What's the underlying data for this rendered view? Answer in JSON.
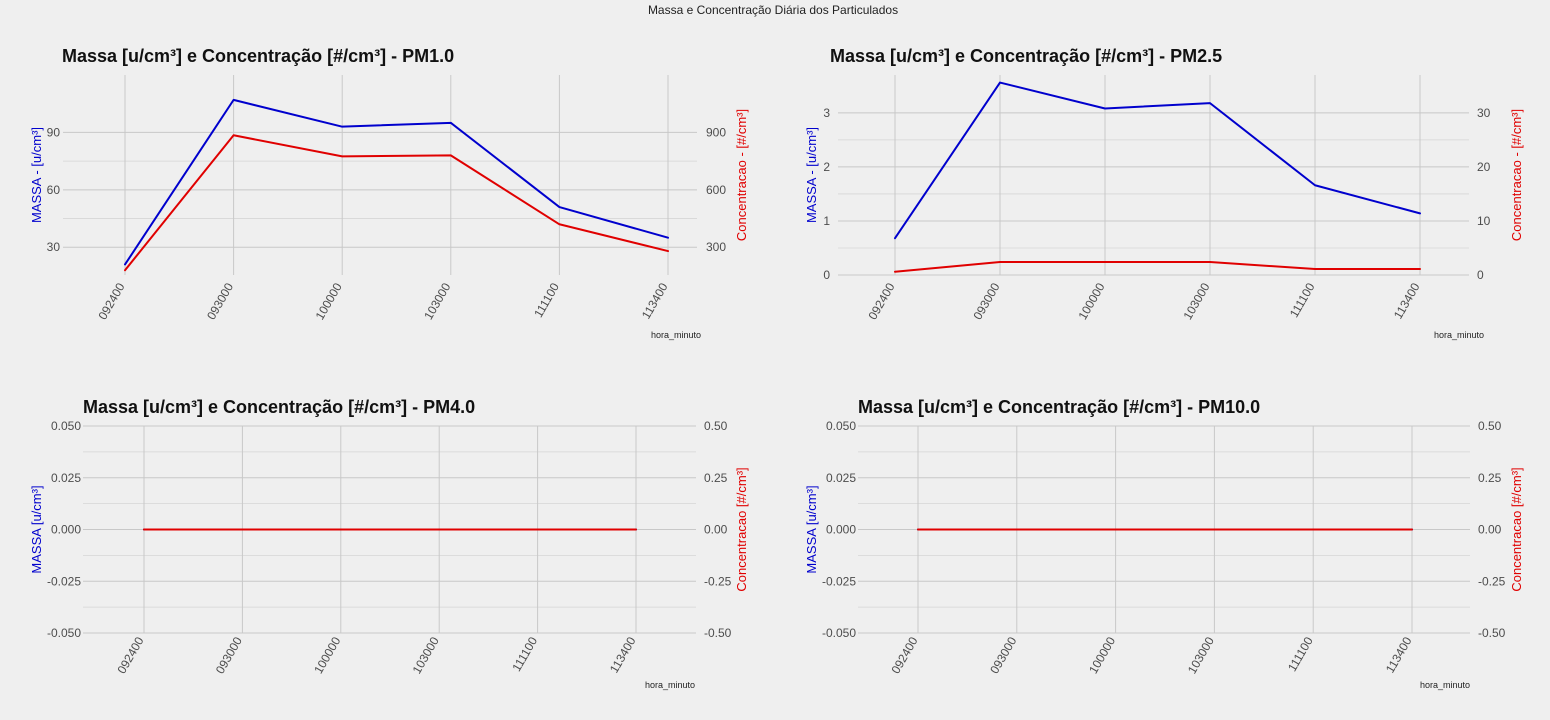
{
  "page": {
    "title": "Massa e Concentração Diária dos Particulados"
  },
  "colors": {
    "background": "#efefef",
    "grid": "#c8c8c8",
    "massa": "#0000cd",
    "concentracao": "#e00000"
  },
  "chart_data": [
    {
      "type": "line",
      "title": "Massa [u/cm³] e Concentração [#/cm³] - PM1.0",
      "xlabel": "hora_minuto",
      "ylabel_left": "MASSA - [u/cm³]",
      "ylabel_right": "Concentracao - [#/cm³]",
      "categories": [
        "092400",
        "093000",
        "100000",
        "103000",
        "111100",
        "113400"
      ],
      "y_left_ticks": [
        "30",
        "60",
        "90"
      ],
      "y_right_ticks": [
        "300",
        "600",
        "900"
      ],
      "y_left_lim": [
        15.5,
        120
      ],
      "y_right_lim": [
        155,
        1200
      ],
      "series": [
        {
          "name": "MASSA",
          "axis": "left",
          "color": "#0000cd",
          "values": [
            21,
            107,
            93,
            95,
            51,
            35
          ]
        },
        {
          "name": "Concentracao",
          "axis": "right",
          "color": "#e00000",
          "values": [
            180,
            885,
            775,
            780,
            420,
            280
          ]
        }
      ],
      "grid": true
    },
    {
      "type": "line",
      "title": "Massa [u/cm³] e Concentração [#/cm³] - PM2.5",
      "xlabel": "hora_minuto",
      "ylabel_left": "MASSA - [u/cm³]",
      "ylabel_right": "Concentracao - [#/cm³]",
      "categories": [
        "092400",
        "093000",
        "100000",
        "103000",
        "111100",
        "113400"
      ],
      "y_left_ticks": [
        "0",
        "1",
        "2",
        "3"
      ],
      "y_right_ticks": [
        "0",
        "10",
        "20",
        "30"
      ],
      "y_left_lim": [
        0,
        3.7
      ],
      "y_right_lim": [
        0,
        37
      ],
      "series": [
        {
          "name": "MASSA",
          "axis": "left",
          "color": "#0000cd",
          "values": [
            0.68,
            3.56,
            3.08,
            3.18,
            1.66,
            1.14
          ]
        },
        {
          "name": "Concentracao",
          "axis": "right",
          "color": "#e00000",
          "values": [
            0.6,
            2.4,
            2.4,
            2.4,
            1.1,
            1.1
          ]
        }
      ],
      "grid": true
    },
    {
      "type": "line",
      "title": "Massa [u/cm³] e Concentração [#/cm³] - PM4.0",
      "xlabel": "hora_minuto",
      "ylabel_left": "MASSA [u/cm³]",
      "ylabel_right": "Concentracao [#/cm³]",
      "categories": [
        "092400",
        "093000",
        "100000",
        "103000",
        "111100",
        "113400"
      ],
      "y_left_ticks": [
        "-0.050",
        "-0.025",
        "0.000",
        "0.025",
        "0.050"
      ],
      "y_right_ticks": [
        "-0.50",
        "-0.25",
        "0.00",
        "0.25",
        "0.50"
      ],
      "y_left_lim": [
        -0.05,
        0.05
      ],
      "y_right_lim": [
        -0.5,
        0.5
      ],
      "series": [
        {
          "name": "MASSA",
          "axis": "left",
          "color": "#0000cd",
          "values": [
            0,
            0,
            0,
            0,
            0,
            0
          ]
        },
        {
          "name": "Concentracao",
          "axis": "right",
          "color": "#e00000",
          "values": [
            0,
            0,
            0,
            0,
            0,
            0
          ]
        }
      ],
      "grid": true
    },
    {
      "type": "line",
      "title": "Massa [u/cm³] e Concentração [#/cm³] - PM10.0",
      "xlabel": "hora_minuto",
      "ylabel_left": "MASSA [u/cm³]",
      "ylabel_right": "Concentracao [#/cm³]",
      "categories": [
        "092400",
        "093000",
        "100000",
        "103000",
        "111100",
        "113400"
      ],
      "y_left_ticks": [
        "-0.050",
        "-0.025",
        "0.000",
        "0.025",
        "0.050"
      ],
      "y_right_ticks": [
        "-0.50",
        "-0.25",
        "0.00",
        "0.25",
        "0.50"
      ],
      "y_left_lim": [
        -0.05,
        0.05
      ],
      "y_right_lim": [
        -0.5,
        0.5
      ],
      "series": [
        {
          "name": "MASSA",
          "axis": "left",
          "color": "#0000cd",
          "values": [
            0,
            0,
            0,
            0,
            0,
            0
          ]
        },
        {
          "name": "Concentracao",
          "axis": "right",
          "color": "#e00000",
          "values": [
            0,
            0,
            0,
            0,
            0,
            0
          ]
        }
      ],
      "grid": true
    }
  ]
}
